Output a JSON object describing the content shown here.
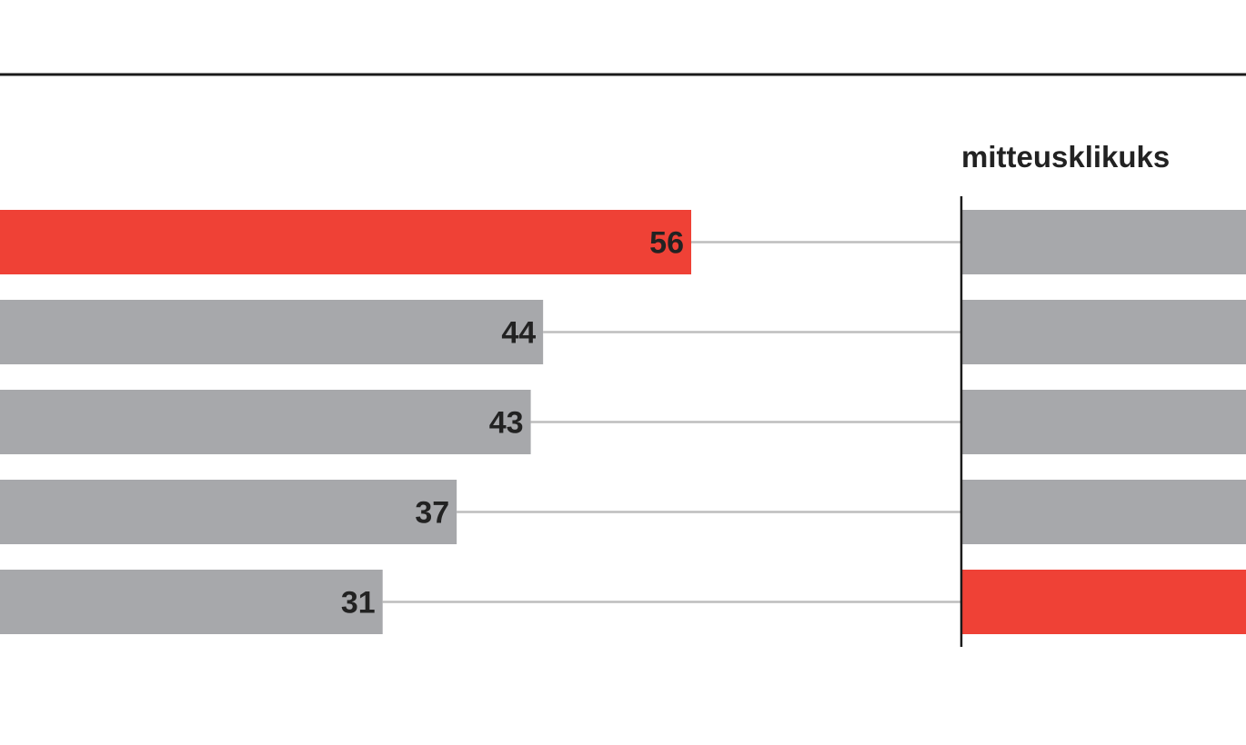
{
  "chart_data": [
    {
      "type": "bar",
      "orientation": "horizontal",
      "title": "",
      "values": [
        56,
        44,
        43,
        37,
        31
      ],
      "highlight_index": 0,
      "colors": {
        "default": "#a7a8ab",
        "highlight": "#ef4136"
      }
    },
    {
      "type": "bar",
      "orientation": "horizontal",
      "title": "mitteusklikuks",
      "values": [],
      "highlight_index": 4,
      "colors": {
        "default": "#a7a8ab",
        "highlight": "#ef4136"
      }
    }
  ],
  "style": {
    "rule_color": "#1a1a1a",
    "connector_color": "#bdbdbd",
    "axis_color": "#1a1a1a"
  }
}
